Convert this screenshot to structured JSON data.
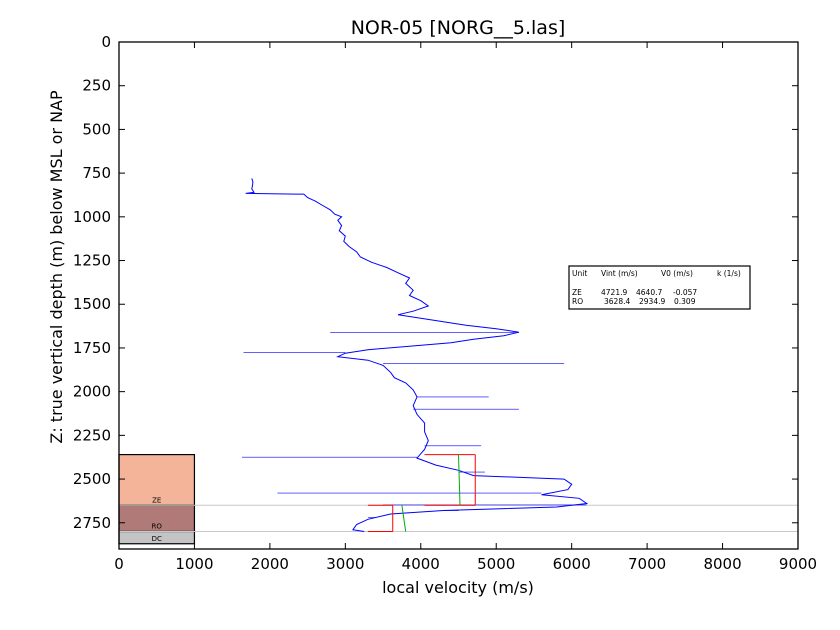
{
  "chart_data": {
    "type": "line",
    "title": "NOR-05 [NORG__5.las]",
    "xlabel": "local velocity (m/s)",
    "ylabel": "Z: true vertical depth (m) below MSL or NAP",
    "xlim": [
      0,
      9000
    ],
    "ylim": [
      2900,
      0
    ],
    "y_inverted": true,
    "x_ticks": [
      "0",
      "1000",
      "2000",
      "3000",
      "4000",
      "5000",
      "6000",
      "7000",
      "8000",
      "9000"
    ],
    "y_ticks": [
      "0",
      "250",
      "500",
      "750",
      "1000",
      "1250",
      "1500",
      "1750",
      "2000",
      "2250",
      "2500",
      "2750"
    ],
    "grid": false,
    "series": [
      {
        "color": "#0000ff",
        "points": [
          [
            1760,
            780
          ],
          [
            1775,
            800
          ],
          [
            1770,
            820
          ],
          [
            1760,
            840
          ],
          [
            1790,
            860
          ],
          [
            1680,
            866
          ],
          [
            2350,
            870
          ],
          [
            2450,
            870
          ],
          [
            2500,
            890
          ],
          [
            2600,
            910
          ],
          [
            2700,
            935
          ],
          [
            2800,
            960
          ],
          [
            2860,
            985
          ],
          [
            2950,
            1000
          ],
          [
            2900,
            1020
          ],
          [
            2950,
            1050
          ],
          [
            2920,
            1080
          ],
          [
            3000,
            1110
          ],
          [
            2980,
            1140
          ],
          [
            3050,
            1170
          ],
          [
            3150,
            1200
          ],
          [
            3200,
            1230
          ],
          [
            3350,
            1260
          ],
          [
            3550,
            1290
          ],
          [
            3700,
            1320
          ],
          [
            3850,
            1350
          ],
          [
            3800,
            1380
          ],
          [
            3900,
            1420
          ],
          [
            3850,
            1450
          ],
          [
            4000,
            1480
          ],
          [
            4100,
            1510
          ],
          [
            3900,
            1540
          ],
          [
            3700,
            1560
          ],
          [
            4000,
            1580
          ],
          [
            4300,
            1600
          ],
          [
            4600,
            1620
          ],
          [
            5000,
            1640
          ],
          [
            5300,
            1660
          ],
          [
            5100,
            1680
          ],
          [
            4700,
            1700
          ],
          [
            4400,
            1720
          ],
          [
            3850,
            1740
          ],
          [
            3300,
            1760
          ],
          [
            3000,
            1780
          ],
          [
            2900,
            1800
          ],
          [
            3300,
            1820
          ],
          [
            3500,
            1850
          ],
          [
            3600,
            1890
          ],
          [
            3650,
            1920
          ],
          [
            3800,
            1950
          ],
          [
            3900,
            1990
          ],
          [
            3950,
            2030
          ],
          [
            3900,
            2080
          ],
          [
            3950,
            2130
          ],
          [
            4050,
            2180
          ],
          [
            4050,
            2230
          ],
          [
            4100,
            2280
          ],
          [
            4050,
            2330
          ],
          [
            3950,
            2380
          ],
          [
            4200,
            2420
          ],
          [
            4500,
            2450
          ],
          [
            4700,
            2480
          ],
          [
            5900,
            2500
          ],
          [
            6000,
            2530
          ],
          [
            5950,
            2560
          ],
          [
            5600,
            2590
          ],
          [
            6100,
            2610
          ],
          [
            6200,
            2640
          ],
          [
            5800,
            2660
          ],
          [
            4300,
            2680
          ],
          [
            3600,
            2700
          ],
          [
            3300,
            2730
          ],
          [
            3150,
            2760
          ],
          [
            3100,
            2790
          ],
          [
            3250,
            2800
          ]
        ]
      }
    ],
    "spikes": [
      [
        1650,
        1775
      ],
      [
        5900,
        1840
      ],
      [
        1630,
        2375
      ],
      [
        4850,
        2460
      ],
      [
        2100,
        2580
      ],
      [
        2800,
        1662
      ],
      [
        4900,
        2030
      ],
      [
        5300,
        2100
      ],
      [
        4800,
        2310
      ],
      [
        3500,
        2648
      ],
      [
        4500,
        2680
      ],
      [
        3400,
        2720
      ]
    ],
    "interval_fits": [
      {
        "label": "ZE",
        "top": 2360,
        "base": 2650,
        "vint": 4721.9,
        "v_top": 4500,
        "v_base": 4520
      },
      {
        "label": "RO",
        "top": 2650,
        "base": 2800,
        "vint": 3628.4,
        "v_top": 3750,
        "v_base": 3800
      }
    ],
    "formation_blocks": [
      {
        "label": "ZE",
        "top": 2360,
        "base": 2650,
        "color": "#f4b49a"
      },
      {
        "label": "RO",
        "top": 2650,
        "base": 2800,
        "color": "#b07a78"
      },
      {
        "label": "DC",
        "top": 2800,
        "base": 2870,
        "color": "#c4c4c4"
      }
    ],
    "boundary_lines": [
      2650,
      2800
    ],
    "table": {
      "headers": [
        "Unit",
        "Vint (m/s)",
        "V0 (m/s)",
        "k (1/s)"
      ],
      "rows": [
        [
          "ZE",
          "4721.9",
          "4640.7",
          "-0.057"
        ],
        [
          "RO",
          "3628.4",
          "2934.9",
          "0.309"
        ]
      ]
    }
  }
}
